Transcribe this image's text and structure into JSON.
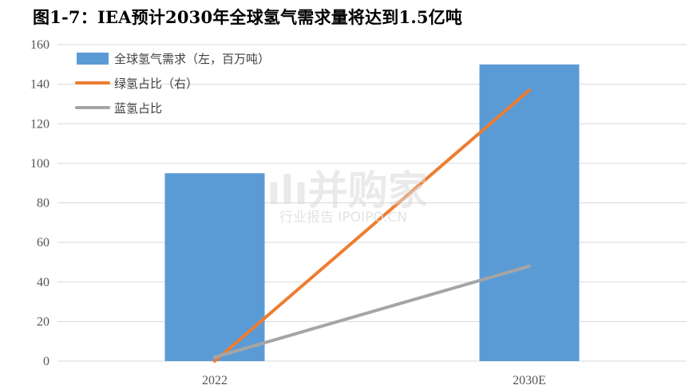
{
  "title": "图1-7：IEA预计2030年全球氢气需求量将达到1.5亿吨",
  "watermark": {
    "main": "ılı并购家",
    "sub": "行业报告 IPOIPO.CN"
  },
  "colors": {
    "bar": "#5b9bd5",
    "green_line": "#ed7d31",
    "blue_line": "#a5a5a5",
    "grid": "#d9d9d9"
  },
  "chart_data": {
    "type": "bar",
    "categories": [
      "2022",
      "2030E"
    ],
    "ylim": [
      0,
      160
    ],
    "yticks": [
      0,
      20,
      40,
      60,
      80,
      100,
      120,
      140,
      160
    ],
    "grid": true,
    "legend_position": "top-left",
    "series": [
      {
        "name": "全球氢气需求（左，百万吨）",
        "type": "bar",
        "axis": "left",
        "values": [
          95,
          150
        ]
      },
      {
        "name": "绿氢占比（右）",
        "type": "line",
        "axis": "right",
        "values": [
          0,
          137
        ]
      },
      {
        "name": "蓝氢占比",
        "type": "line",
        "axis": "right",
        "values": [
          2,
          48
        ]
      }
    ]
  }
}
